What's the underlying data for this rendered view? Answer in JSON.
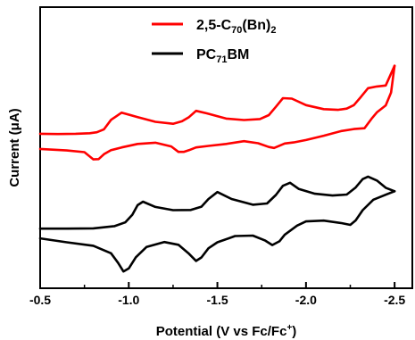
{
  "chart_data": {
    "type": "line",
    "title": "",
    "xlabel": "Potential (V vs Fc/Fc+)",
    "xlabel_parts": {
      "main": "Potential (V vs Fc/Fc",
      "sup": "+",
      "end": ")"
    },
    "ylabel": "Current (μA)",
    "x_reversed": true,
    "xlim": [
      -0.5,
      -2.6
    ],
    "ylim": [
      0,
      1
    ],
    "y_tick_labels": false,
    "grid": false,
    "legend_position": "top",
    "x_ticks": [
      -0.5,
      -1.0,
      -1.5,
      -2.0,
      -2.5
    ],
    "x_tick_labels": [
      "-0.5",
      "-1.0",
      "-1.5",
      "-2.0",
      "-2.5"
    ],
    "series": [
      {
        "name": "2,5-C70(Bn)2",
        "legend_parts": {
          "a": "2,5-C",
          "s1": "70",
          "b": "(Bn)",
          "s2": "2"
        },
        "color": "#ff0000",
        "forward": {
          "x": [
            -0.5,
            -0.6,
            -0.7,
            -0.78,
            -0.82,
            -0.86,
            -0.9,
            -0.96,
            -1.05,
            -1.15,
            -1.25,
            -1.3,
            -1.34,
            -1.38,
            -1.44,
            -1.55,
            -1.65,
            -1.74,
            -1.79,
            -1.83,
            -1.87,
            -1.92,
            -2.0,
            -2.1,
            -2.18,
            -2.23,
            -2.27,
            -2.31,
            -2.35,
            -2.4,
            -2.45,
            -2.5
          ],
          "y": [
            0.556,
            0.555,
            0.556,
            0.558,
            0.562,
            0.574,
            0.612,
            0.641,
            0.623,
            0.604,
            0.596,
            0.606,
            0.623,
            0.648,
            0.638,
            0.617,
            0.611,
            0.615,
            0.631,
            0.664,
            0.699,
            0.697,
            0.671,
            0.655,
            0.652,
            0.657,
            0.671,
            0.704,
            0.739,
            0.746,
            0.75,
            0.829
          ]
        },
        "reverse": {
          "x": [
            -2.5,
            -2.48,
            -2.45,
            -2.4,
            -2.37,
            -2.33,
            -2.27,
            -2.2,
            -2.1,
            -2.0,
            -1.93,
            -1.88,
            -1.85,
            -1.82,
            -1.79,
            -1.73,
            -1.65,
            -1.55,
            -1.45,
            -1.38,
            -1.34,
            -1.31,
            -1.28,
            -1.24,
            -1.15,
            -1.05,
            -0.96,
            -0.9,
            -0.86,
            -0.83,
            -0.8,
            -0.75,
            -0.65,
            -0.5
          ],
          "y": [
            0.829,
            0.722,
            0.67,
            0.642,
            0.616,
            0.578,
            0.575,
            0.567,
            0.548,
            0.531,
            0.521,
            0.517,
            0.508,
            0.499,
            0.503,
            0.518,
            0.526,
            0.515,
            0.507,
            0.501,
            0.49,
            0.483,
            0.483,
            0.505,
            0.52,
            0.515,
            0.501,
            0.49,
            0.474,
            0.454,
            0.453,
            0.482,
            0.489,
            0.495
          ]
        }
      },
      {
        "name": "PC71BM",
        "legend_parts": {
          "a": "PC",
          "s1": "71",
          "b": "BM",
          "s2": ""
        },
        "color": "#000000",
        "forward": {
          "x": [
            -0.5,
            -0.65,
            -0.8,
            -0.92,
            -0.98,
            -1.02,
            -1.05,
            -1.08,
            -1.15,
            -1.25,
            -1.35,
            -1.41,
            -1.45,
            -1.5,
            -1.58,
            -1.7,
            -1.78,
            -1.83,
            -1.87,
            -1.91,
            -1.96,
            -2.05,
            -2.15,
            -2.23,
            -2.28,
            -2.32,
            -2.35,
            -2.4,
            -2.45,
            -2.5
          ],
          "y": [
            0.175,
            0.175,
            0.176,
            0.185,
            0.2,
            0.231,
            0.269,
            0.283,
            0.262,
            0.249,
            0.25,
            0.263,
            0.294,
            0.322,
            0.294,
            0.271,
            0.276,
            0.31,
            0.347,
            0.359,
            0.334,
            0.315,
            0.308,
            0.312,
            0.34,
            0.374,
            0.384,
            0.368,
            0.339,
            0.325
          ]
        },
        "reverse": {
          "x": [
            -2.5,
            -2.45,
            -2.38,
            -2.32,
            -2.28,
            -2.25,
            -2.2,
            -2.1,
            -2.0,
            -1.95,
            -1.88,
            -1.85,
            -1.81,
            -1.77,
            -1.7,
            -1.6,
            -1.5,
            -1.45,
            -1.41,
            -1.38,
            -1.34,
            -1.28,
            -1.2,
            -1.1,
            -1.04,
            -1.0,
            -0.97,
            -0.94,
            -0.9,
            -0.8,
            -0.65,
            -0.5
          ],
          "y": [
            0.325,
            0.311,
            0.291,
            0.249,
            0.208,
            0.19,
            0.197,
            0.207,
            0.204,
            0.187,
            0.15,
            0.124,
            0.109,
            0.127,
            0.147,
            0.145,
            0.12,
            0.096,
            0.059,
            0.045,
            0.074,
            0.11,
            0.121,
            0.101,
            0.06,
            0.015,
            0.003,
            0.037,
            0.076,
            0.106,
            0.12,
            0.136
          ]
        }
      }
    ]
  }
}
